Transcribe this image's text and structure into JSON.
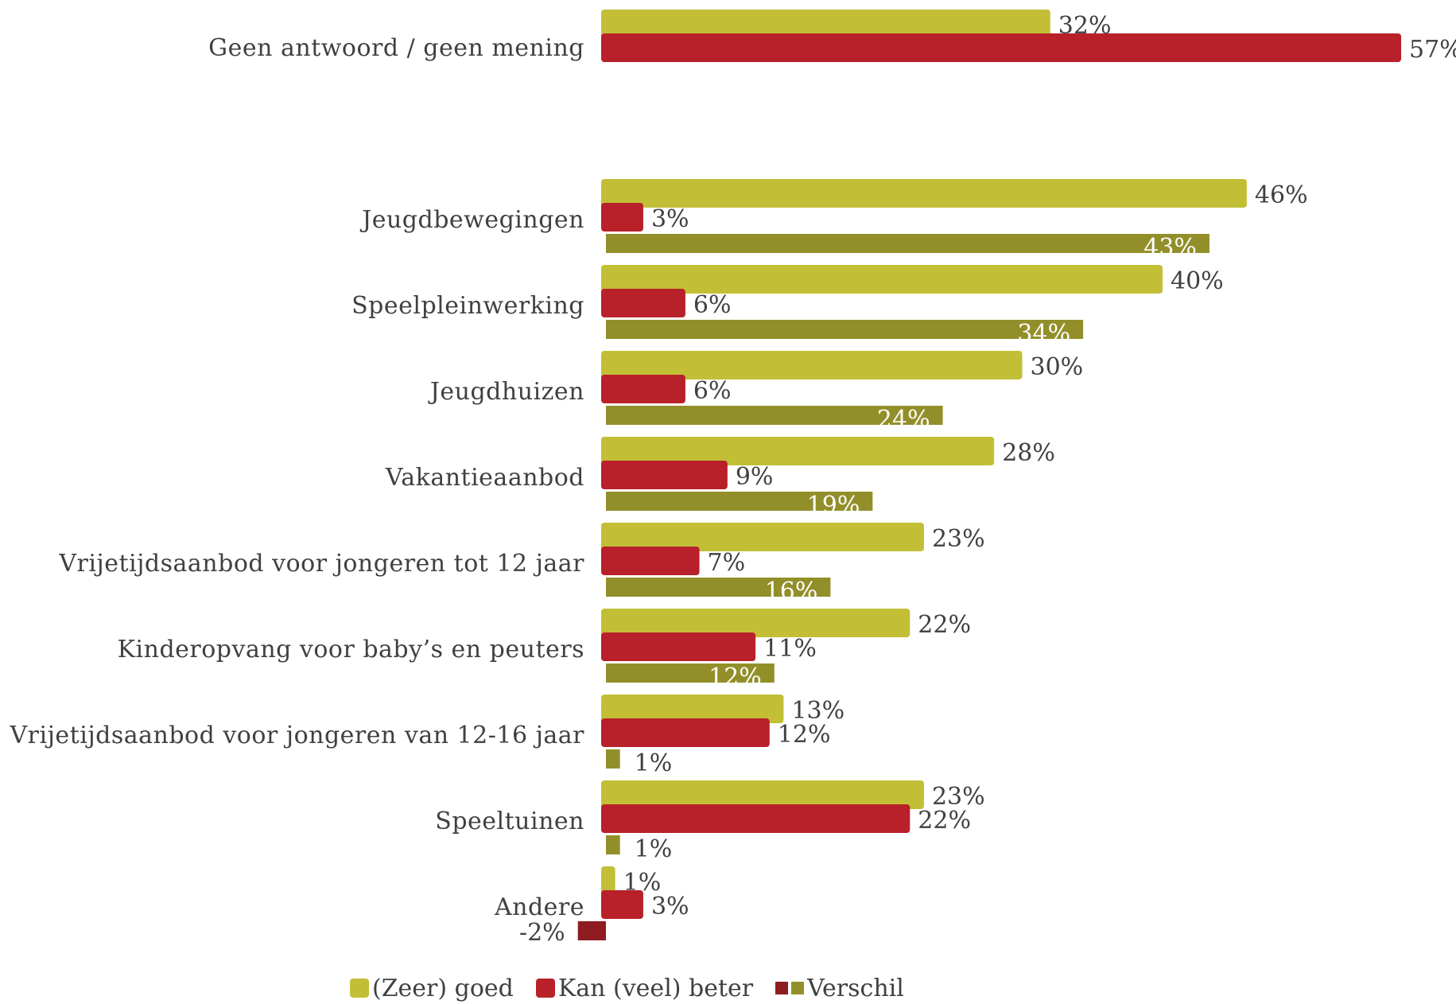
{
  "chart_data": {
    "type": "bar",
    "orientation": "horizontal",
    "categories": [
      "Geen antwoord / geen mening",
      "Jeugdbewegingen",
      "Speelpleinwerking",
      "Jeugdhuizen",
      "Vakantieaanbod",
      "Vrijetijdsaanbod voor jongeren tot 12 jaar",
      "Kinderopvang voor baby’s en peuters",
      "Vrijetijdsaanbod voor jongeren van 12-16 jaar",
      "Speeltuinen",
      "Andere"
    ],
    "series": [
      {
        "name": "(Zeer) goed",
        "color": "#c2bf37",
        "values": [
          32,
          46,
          40,
          30,
          28,
          23,
          22,
          13,
          23,
          1
        ],
        "labels": [
          "32%",
          "46%",
          "40%",
          "30%",
          "28%",
          "23%",
          "22%",
          "13%",
          "23%",
          "1%"
        ]
      },
      {
        "name": "Kan (veel) beter",
        "color": "#b8202a",
        "values": [
          57,
          3,
          6,
          6,
          9,
          7,
          11,
          12,
          22,
          3
        ],
        "labels": [
          "57%",
          "3%",
          "6%",
          "6%",
          "9%",
          "7%",
          "11%",
          "12%",
          "22%",
          "3%"
        ]
      },
      {
        "name": "Verschil",
        "color": "#928f2a",
        "negative_color": "#8e1c20",
        "values": [
          null,
          43,
          34,
          24,
          19,
          16,
          12,
          1,
          1,
          -2
        ],
        "labels": [
          "",
          "43%",
          "34%",
          "24%",
          "19%",
          "16%",
          "12%",
          "1%",
          "1%",
          "-2%"
        ]
      }
    ],
    "legend_position": "bottom",
    "grid": false,
    "xlim": [
      -2,
      57
    ]
  }
}
